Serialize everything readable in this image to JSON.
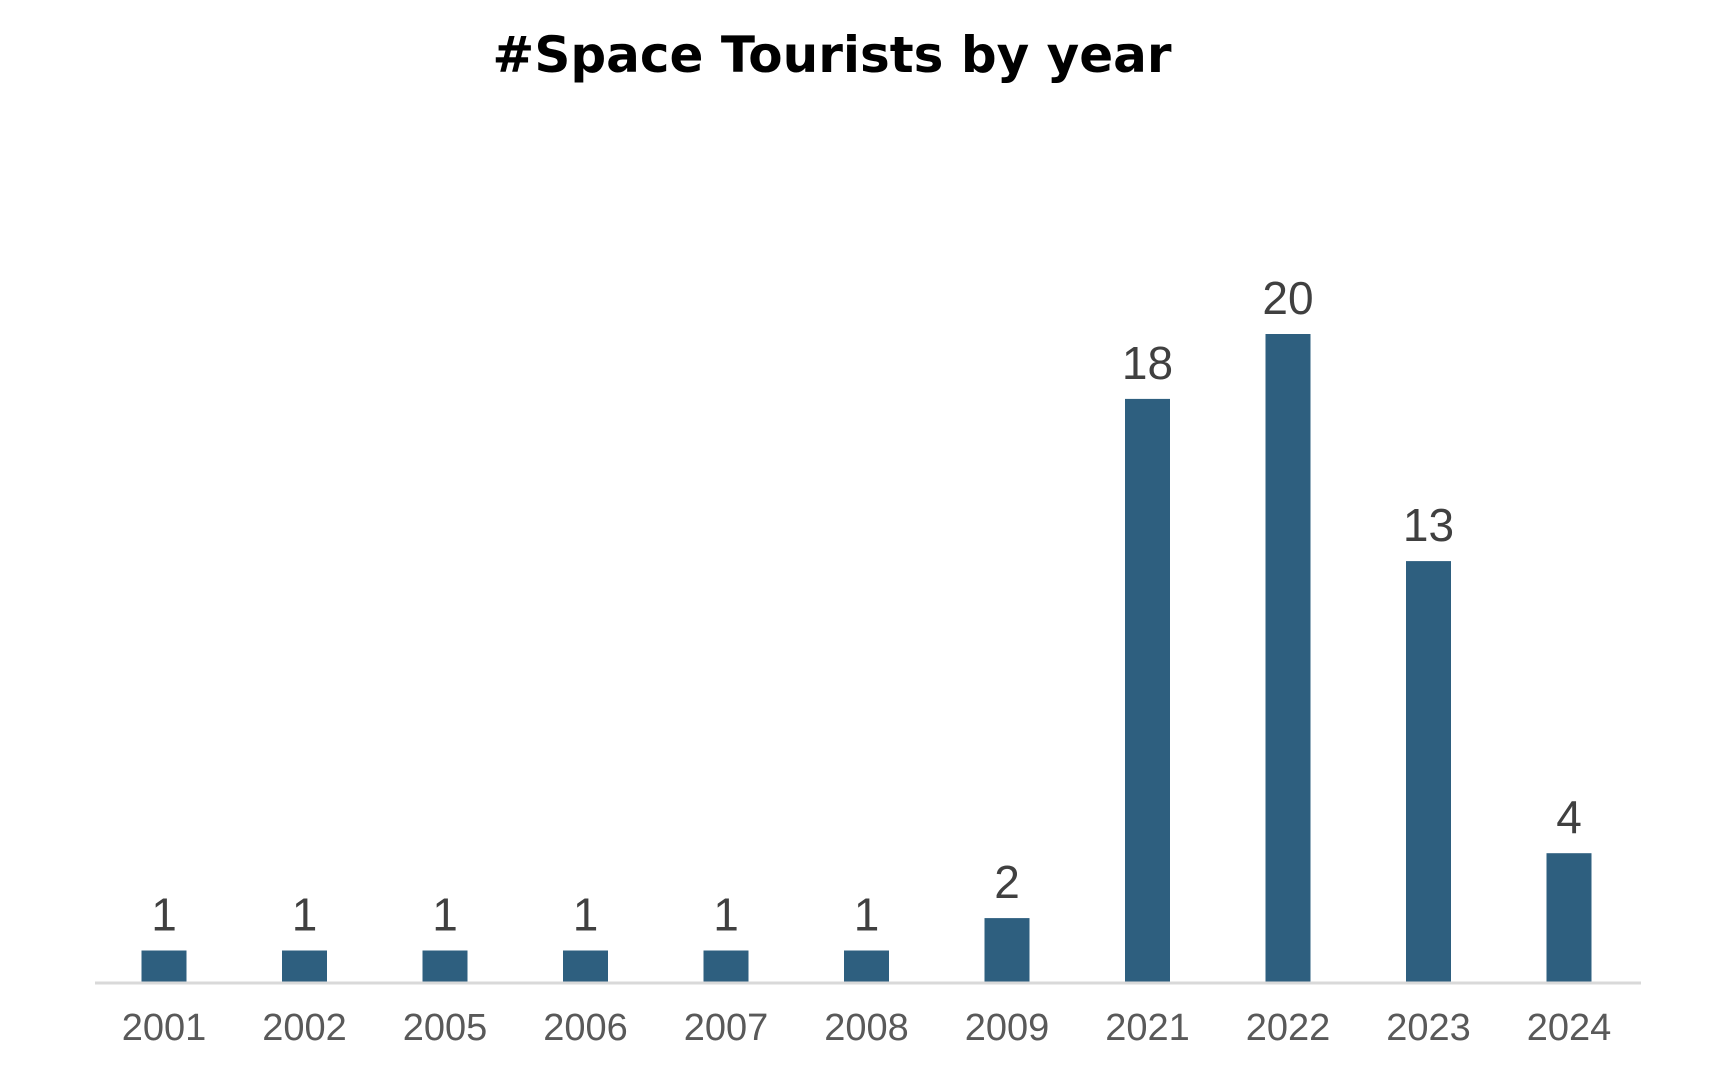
{
  "chart_data": {
    "type": "bar",
    "title": "#Space Tourists by year",
    "xlabel": "",
    "ylabel": "",
    "categories": [
      "2001",
      "2002",
      "2005",
      "2006",
      "2007",
      "2008",
      "2009",
      "2021",
      "2022",
      "2023",
      "2024"
    ],
    "values": [
      1,
      1,
      1,
      1,
      1,
      1,
      2,
      18,
      20,
      13,
      4
    ],
    "data_labels": [
      "1",
      "1",
      "1",
      "1",
      "1",
      "1",
      "2",
      "18",
      "20",
      "13",
      "4"
    ],
    "ylim": [
      0,
      20
    ],
    "grid": false,
    "legend": "none",
    "colors": {
      "bar": "#2e5f7f",
      "axis": "#d9d9d9",
      "title": "#000000",
      "data_label": "#404040",
      "tick_label": "#595959"
    }
  }
}
